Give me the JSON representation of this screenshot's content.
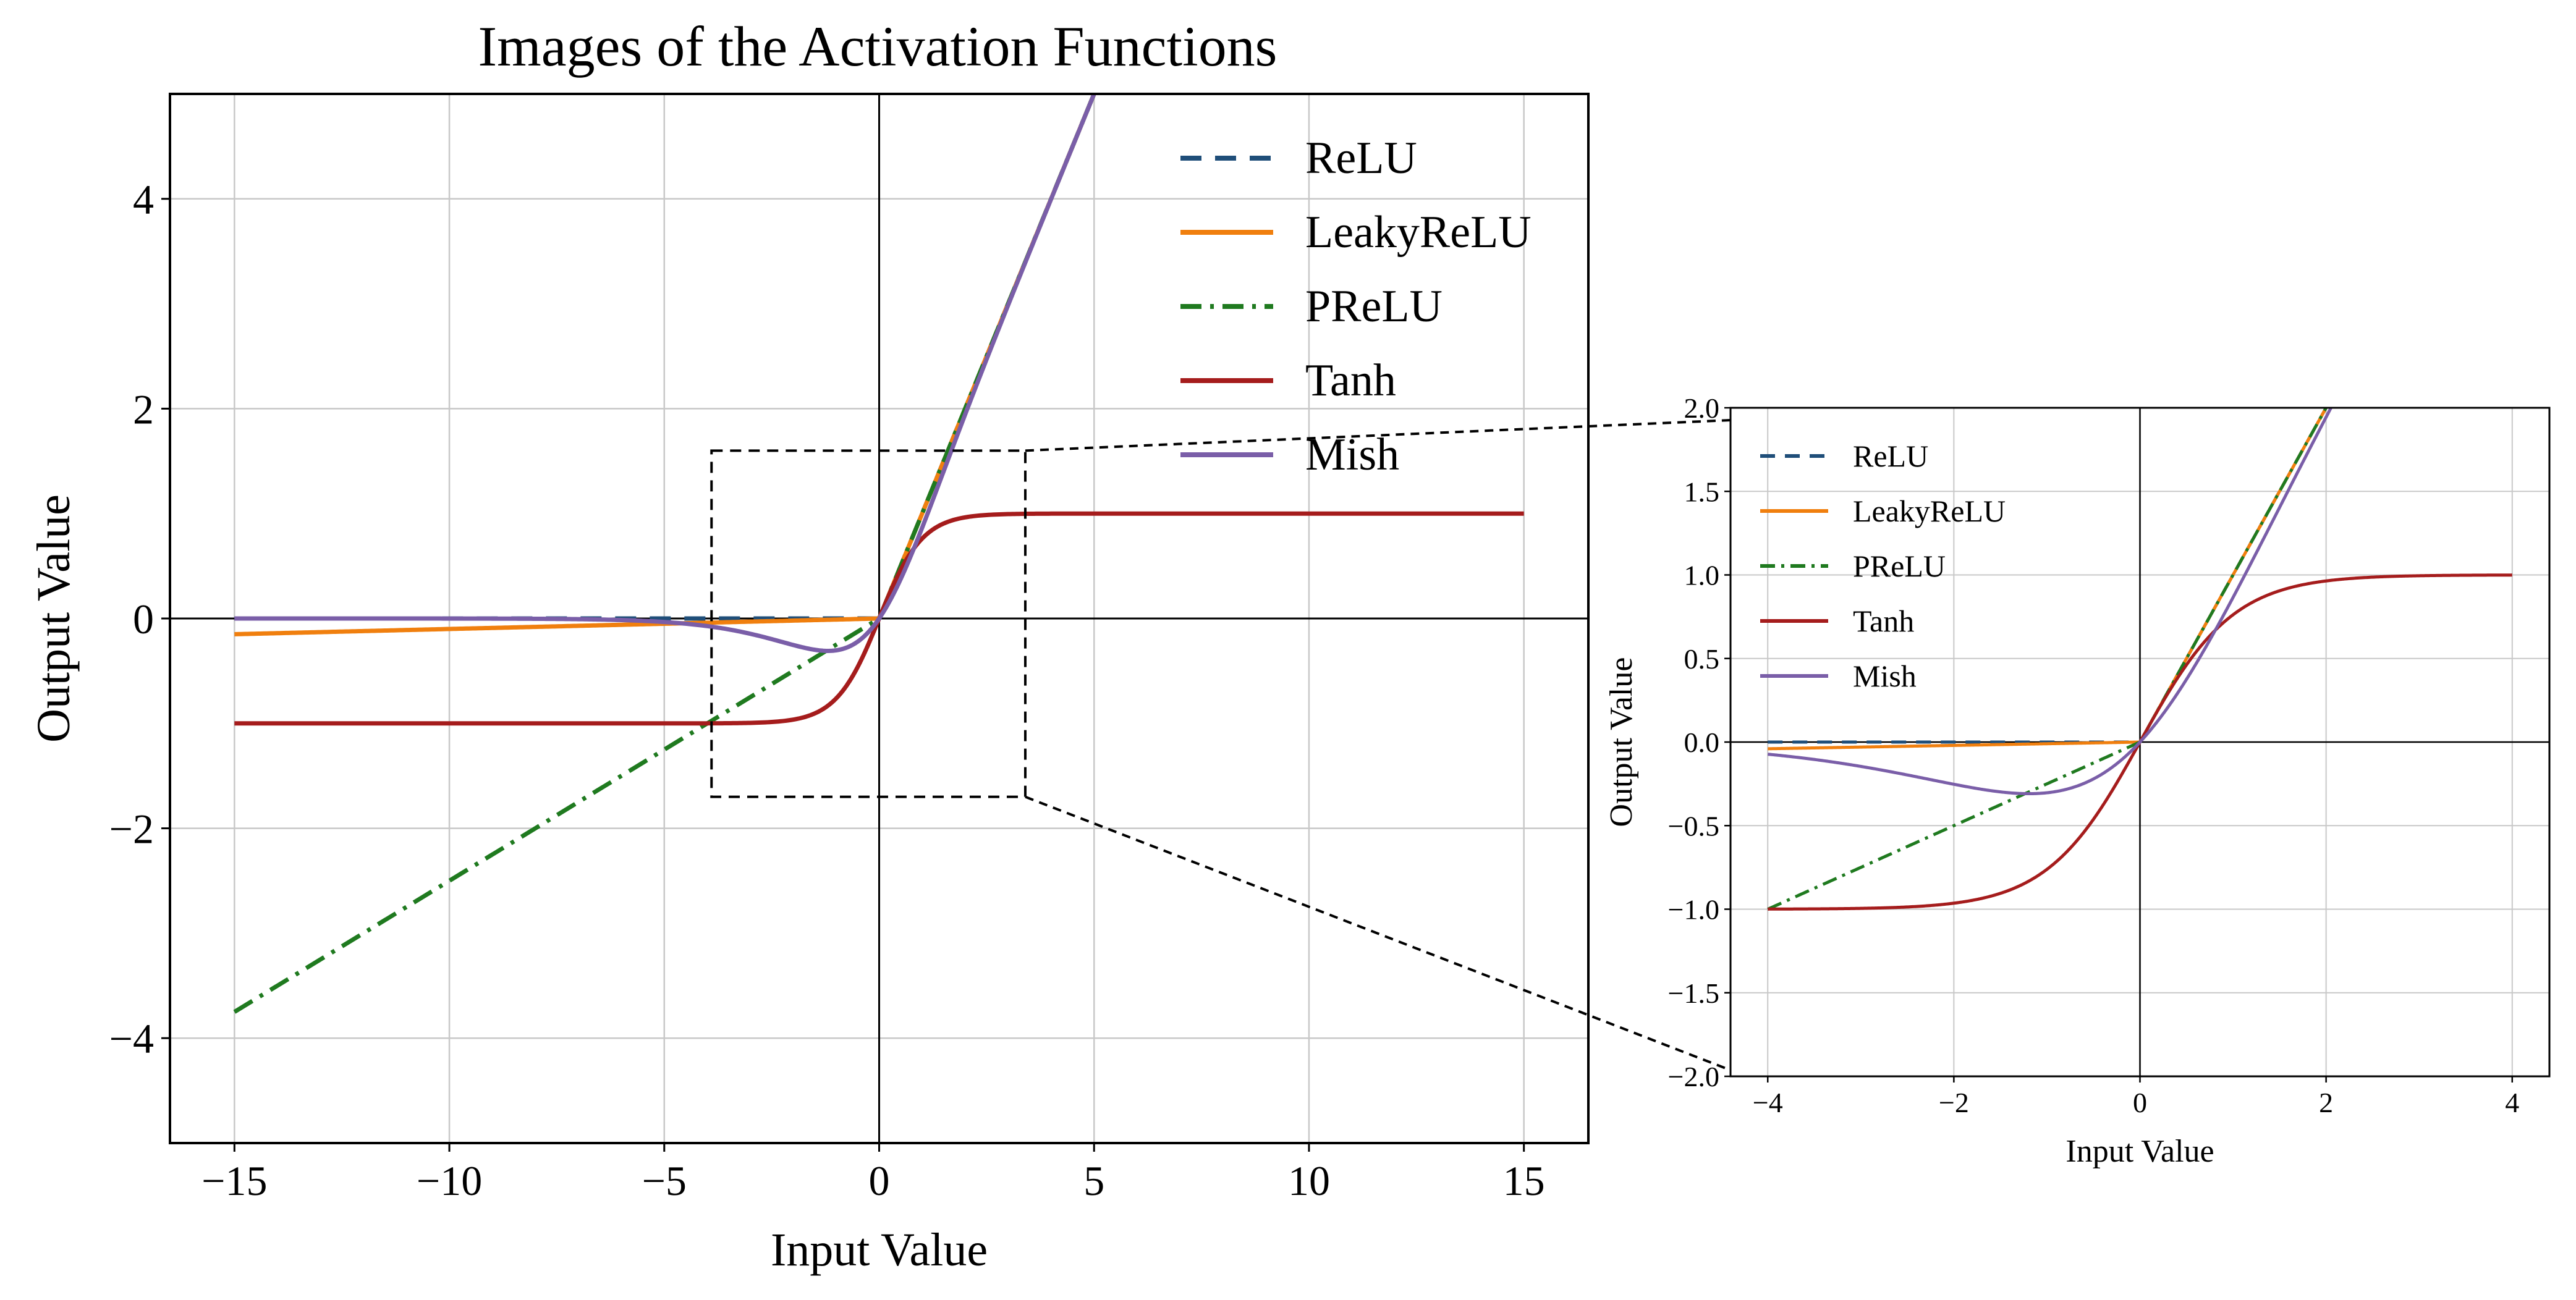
{
  "chart_data": [
    {
      "type": "line",
      "id": "main",
      "title": "Images of the Activation Functions",
      "xlabel": "Input Value",
      "ylabel": "Output Value",
      "xlim": [
        -16.5,
        16.5
      ],
      "ylim": [
        -5,
        5
      ],
      "x_range": [
        -15,
        15
      ],
      "xticks": [
        -15,
        -10,
        -5,
        0,
        5,
        10,
        15
      ],
      "yticks": [
        -4,
        -2,
        0,
        2,
        4
      ],
      "xtick_labels": [
        "−15",
        "−10",
        "−5",
        "0",
        "5",
        "10",
        "15"
      ],
      "ytick_labels": [
        "−4",
        "−2",
        "0",
        "2",
        "4"
      ],
      "grid": true,
      "legend_position": "top-right",
      "series": [
        {
          "name": "ReLU",
          "function": "relu",
          "color": "#1f4e79",
          "style": "dashed"
        },
        {
          "name": "LeakyReLU",
          "function": "leaky_relu",
          "alpha": 0.01,
          "color": "#f07f0e",
          "style": "solid"
        },
        {
          "name": "PReLU",
          "function": "prelu",
          "alpha": 0.25,
          "color": "#1f7a1f",
          "style": "dashdot"
        },
        {
          "name": "Tanh",
          "function": "tanh",
          "color": "#a51c1c",
          "style": "solid"
        },
        {
          "name": "Mish",
          "function": "mish",
          "color": "#7a5ea8",
          "style": "solid"
        }
      ],
      "zoom_box": {
        "x": [
          -3.9,
          3.4
        ],
        "y": [
          -1.7,
          1.6
        ]
      }
    },
    {
      "type": "line",
      "id": "inset",
      "title": "",
      "xlabel": "Input Value",
      "ylabel": "Output Value",
      "xlim": [
        -4.4,
        4.4
      ],
      "ylim": [
        -2.0,
        2.0
      ],
      "x_range": [
        -4,
        4
      ],
      "xticks": [
        -4,
        -2,
        0,
        2,
        4
      ],
      "yticks": [
        -2.0,
        -1.5,
        -1.0,
        -0.5,
        0.0,
        0.5,
        1.0,
        1.5,
        2.0
      ],
      "xtick_labels": [
        "−4",
        "−2",
        "0",
        "2",
        "4"
      ],
      "ytick_labels": [
        "−2.0",
        "−1.5",
        "−1.0",
        "−0.5",
        "0.0",
        "0.5",
        "1.0",
        "1.5",
        "2.0"
      ],
      "grid": true,
      "legend_position": "top-left",
      "series": [
        {
          "name": "ReLU",
          "function": "relu",
          "color": "#1f4e79",
          "style": "dashed"
        },
        {
          "name": "LeakyReLU",
          "function": "leaky_relu",
          "alpha": 0.01,
          "color": "#f07f0e",
          "style": "solid"
        },
        {
          "name": "PReLU",
          "function": "prelu",
          "alpha": 0.25,
          "color": "#1f7a1f",
          "style": "dashdot"
        },
        {
          "name": "Tanh",
          "function": "tanh",
          "color": "#a51c1c",
          "style": "solid"
        },
        {
          "name": "Mish",
          "function": "mish",
          "color": "#7a5ea8",
          "style": "solid"
        }
      ]
    }
  ]
}
